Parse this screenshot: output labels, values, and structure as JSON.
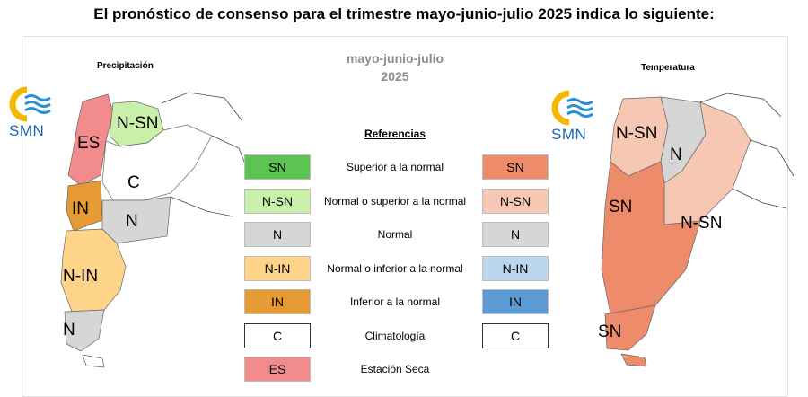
{
  "title": "El pronóstico de consenso para el trimestre mayo-junio-julio 2025 indica lo siguiente:",
  "period_line1": "mayo-junio-julio",
  "period_line2": "2025",
  "map_precip": {
    "title": "Precipitación",
    "labels": [
      "N-SN",
      "ES",
      "C",
      "IN",
      "N",
      "N-IN",
      "N"
    ]
  },
  "map_temp": {
    "title": "Temperatura",
    "labels": [
      "N-SN",
      "N",
      "SN",
      "N-SN",
      "SN"
    ]
  },
  "logo_text": "SMN",
  "references": {
    "title": "Referencias",
    "rows": [
      {
        "desc": "Superior a la normal",
        "precip_code": "SN",
        "precip_color": "#5cc451",
        "temp_code": "SN",
        "temp_color": "#ee8b6b"
      },
      {
        "desc": "Normal o superior a la normal",
        "precip_code": "N-SN",
        "precip_color": "#c8f0a8",
        "temp_code": "N-SN",
        "temp_color": "#f6c8b3"
      },
      {
        "desc": "Normal",
        "precip_code": "N",
        "precip_color": "#d6d6d6",
        "temp_code": "N",
        "temp_color": "#d6d6d6"
      },
      {
        "desc": "Normal o inferior a la normal",
        "precip_code": "N-IN",
        "precip_color": "#fdd489",
        "temp_code": "N-IN",
        "temp_color": "#bcd6ef"
      },
      {
        "desc": "Inferior a la normal",
        "precip_code": "IN",
        "precip_color": "#e69a33",
        "temp_code": "IN",
        "temp_color": "#5b9bd5"
      },
      {
        "desc": "Climatología",
        "precip_code": "C",
        "precip_color": "#ffffff",
        "temp_code": "C",
        "temp_color": "#ffffff"
      },
      {
        "desc": "Estación Seca",
        "precip_code": "ES",
        "precip_color": "#f28b8b"
      }
    ]
  }
}
